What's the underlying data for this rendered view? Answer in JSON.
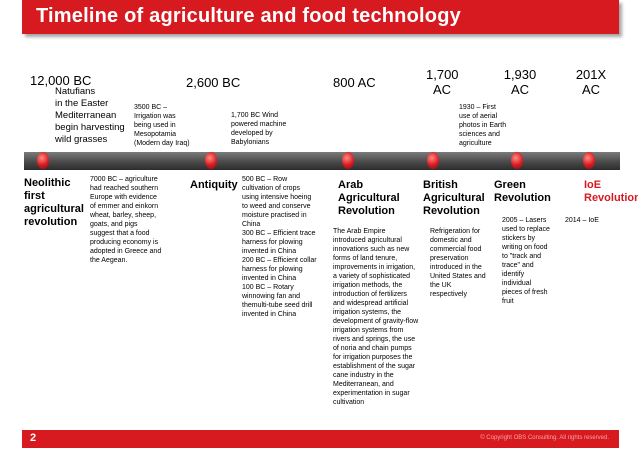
{
  "title": "Timeline of agriculture and food technology",
  "colors": {
    "accent": "#d71920",
    "axis": "#4a4a4a",
    "text": "#000000",
    "white": "#ffffff"
  },
  "dates": [
    "12,000 BC",
    "2,600 BC",
    "800 AC",
    "1,700\nAC",
    "1,930\nAC",
    "201X\nAC"
  ],
  "top_notes": {
    "natufians": "Natufians\nin the Easter\nMediterranean\nbegin harvesting\nwild grasses",
    "irrigation": "3500 BC –\nIrrigation was\nbeing used in\nMesopotamia\n(Modern day Iraq)",
    "wind": "1,700 BC Wind\npowered machine\ndeveloped by\nBabylonians",
    "aerial": "1930 – First\nuse of aerial\nphotos in Earth\nsciences and\nagriculture"
  },
  "eras": {
    "neolithic": "Neolithic\nfirst\nagricultural\nrevolution",
    "antiquity": "Antiquity",
    "arab": "Arab\nAgricultural\nRevolution",
    "british": "British\nAgricultural\nRevolution",
    "green": "Green\nRevolution",
    "ioe": "IoE\nRevolution"
  },
  "bottom_notes": {
    "neolithic": "7000 BC – agriculture\nhad reached southern\nEurope with evidence\nof emmer and einkorn\nwheat, barley, sheep,\ngoats, and pigs\nsuggest that a food\nproducing economy is\nadopted in Greece and\nthe Aegean.",
    "antiquity": "500 BC – Row\ncultivation of crops\nusing intensive hoeing\nto weed and conserve\nmoisture practised in\nChina\n300 BC – Efficient trace\nharness for plowing\ninvented in China\n200 BC – Efficient collar\nharness for plowing\ninvented in China\n100 BC – Rotary\nwinnowing fan and\nthemulti-tube seed drill\ninvented in China",
    "arab": "The Arab Empire\nintroduced agricultural\ninnovations such as new\nforms of land tenure,\nimprovements in irrigation,\na variety of sophisticated\nirrigation methods, the\nintroduction of fertilizers\nand widespread artificial\nirrigation systems, the\ndevelopment of gravity-flow\nirrigation systems from\nrivers and springs, the use\nof noria and chain pumps\nfor irrigation purposes the\nestablishment of the sugar\ncane industry in the\nMediterranean, and\nexperimentation in sugar\ncultivation",
    "british": "Refrigeration for\ndomestic and\ncommercial food\npreservation\nintroduced in the\nUnited States and\nthe UK\nrespectively",
    "green": "2005 – Lasers\nused to replace\nstickers by\nwriting on food\nto \"track and\ntrace\" and\nidentify\nindividual\npieces of fresh\nfruit",
    "ioe": "2014 – IoE"
  },
  "footer": {
    "page_number": "2",
    "copyright": "© Copyright OBS Consulting. All rights reserved."
  }
}
